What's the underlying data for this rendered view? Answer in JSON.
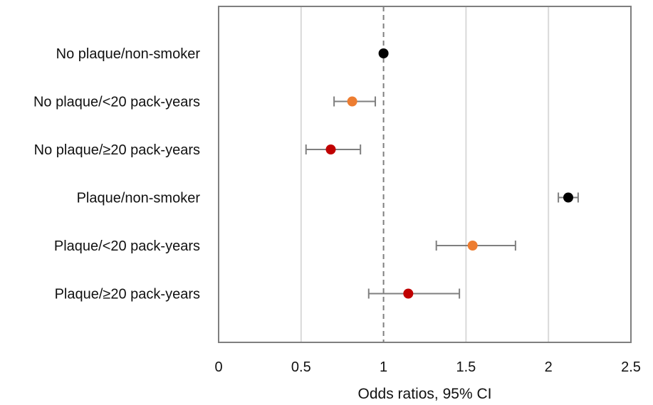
{
  "chart_data": {
    "type": "scatter",
    "title": "",
    "xlabel": "Odds ratios, 95% CI",
    "ylabel": "",
    "xlim": [
      0,
      2.5
    ],
    "x_ticks": [
      "0",
      "0.5",
      "1",
      "1.5",
      "2",
      "2.5"
    ],
    "reference_line": 1,
    "grid": "vertical",
    "categories": [
      "No plaque/non-smoker",
      "No plaque/<20 pack-years",
      "No plaque/≥20 pack-years",
      "Plaque/non-smoker",
      "Plaque/<20 pack-years",
      "Plaque/≥20 pack-years"
    ],
    "points": [
      {
        "or": 1.0,
        "lower": null,
        "upper": null,
        "color": "#000000"
      },
      {
        "or": 0.81,
        "lower": 0.7,
        "upper": 0.95,
        "color": "#ED7D31"
      },
      {
        "or": 0.68,
        "lower": 0.53,
        "upper": 0.86,
        "color": "#C00000"
      },
      {
        "or": 2.12,
        "lower": 2.06,
        "upper": 2.18,
        "color": "#000000"
      },
      {
        "or": 1.54,
        "lower": 1.32,
        "upper": 1.8,
        "color": "#ED7D31"
      },
      {
        "or": 1.15,
        "lower": 0.91,
        "upper": 1.46,
        "color": "#C00000"
      }
    ]
  }
}
